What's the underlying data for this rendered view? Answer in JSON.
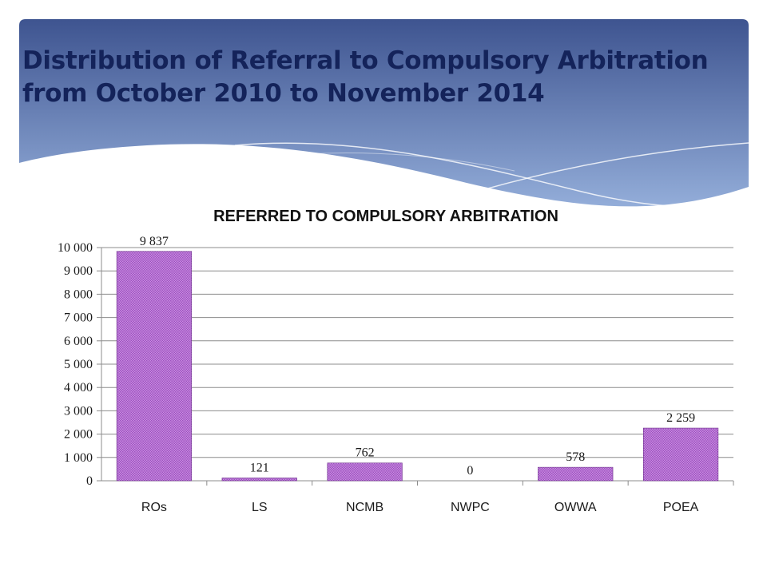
{
  "slide": {
    "title_line1": "Distribution of Referral to Compulsory Arbitration",
    "title_line2": "from October 2010 to November 2014"
  },
  "colors": {
    "header_top": "#3e5490",
    "header_bottom": "#93add9",
    "title_text": "#14235a",
    "bar_fill": "#b77fd0",
    "bar_stroke": "#6b2d8a"
  },
  "chart_data": {
    "type": "bar",
    "title": "REFERRED TO COMPULSORY ARBITRATION",
    "xlabel": "",
    "ylabel": "",
    "categories": [
      "ROs",
      "LS",
      "NCMB",
      "NWPC",
      "OWWA",
      "POEA"
    ],
    "values": [
      9837,
      121,
      762,
      0,
      578,
      2259
    ],
    "data_labels": [
      "9 837",
      "121",
      "762",
      "0",
      "578",
      "2 259"
    ],
    "ylim": [
      0,
      10000
    ],
    "yticks": [
      0,
      1000,
      2000,
      3000,
      4000,
      5000,
      6000,
      7000,
      8000,
      9000,
      10000
    ],
    "ytick_labels": [
      "0",
      "1 000",
      "2 000",
      "3 000",
      "4 000",
      "5 000",
      "6 000",
      "7 000",
      "8 000",
      "9 000",
      "10 000"
    ],
    "grid": true,
    "legend": "none"
  }
}
